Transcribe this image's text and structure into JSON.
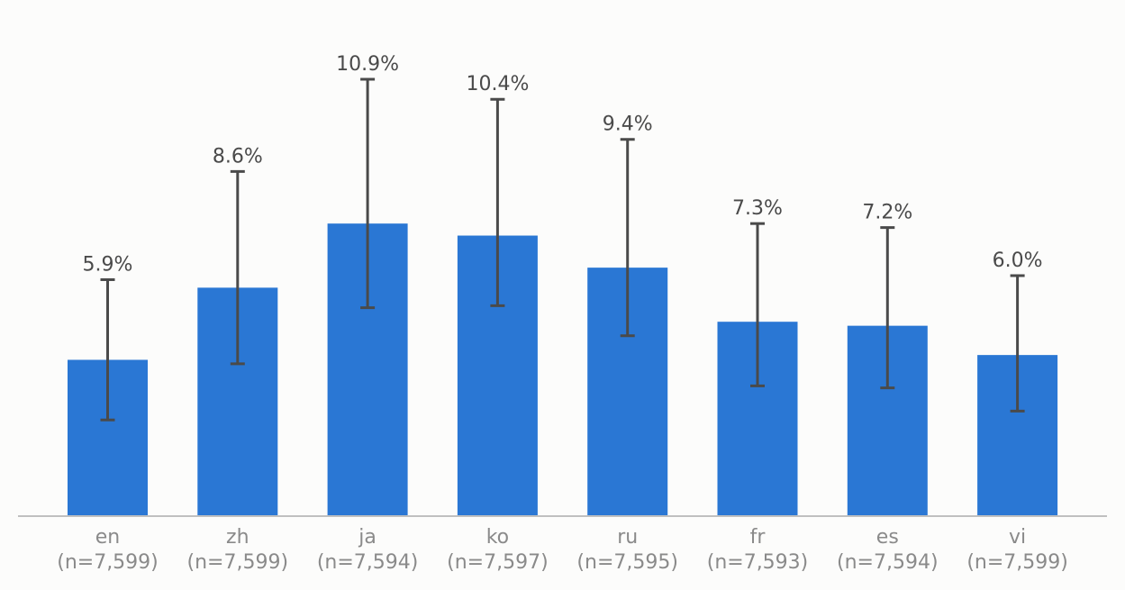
{
  "chart_data": {
    "type": "bar",
    "title": "",
    "xlabel": "",
    "ylabel": "",
    "categories": [
      "en",
      "zh",
      "ja",
      "ko",
      "ru",
      "fr",
      "es",
      "vi"
    ],
    "sample_sizes": [
      "(n=7,599)",
      "(n=7,599)",
      "(n=7,594)",
      "(n=7,597)",
      "(n=7,595)",
      "(n=7,593)",
      "(n=7,594)",
      "(n=7,599)"
    ],
    "values": [
      3.9,
      5.7,
      7.3,
      7.0,
      6.2,
      4.85,
      4.75,
      4.02
    ],
    "error_low": [
      2.4,
      3.8,
      5.2,
      5.25,
      4.5,
      3.25,
      3.2,
      2.62
    ],
    "error_high": [
      5.9,
      8.6,
      10.9,
      10.4,
      9.4,
      7.3,
      7.2,
      6.0
    ],
    "value_labels": [
      "5.9%",
      "8.6%",
      "10.9%",
      "10.4%",
      "9.4%",
      "7.3%",
      "7.2%",
      "6.0%"
    ],
    "ylim": [
      0,
      11
    ],
    "grid": false,
    "legend": "none",
    "bar_color": "#2a77d4",
    "error_color": "#4a4a4a",
    "axis_color": "#c0c0c0"
  }
}
